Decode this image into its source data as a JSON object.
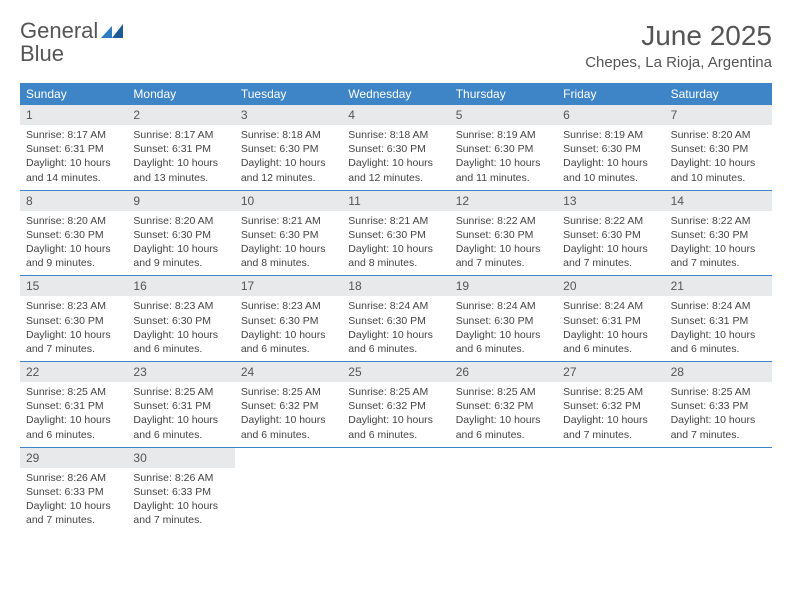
{
  "logo": {
    "text1": "General",
    "text2": "Blue"
  },
  "title": "June 2025",
  "subtitle": "Chepes, La Rioja, Argentina",
  "colors": {
    "header_bg": "#3d85c6",
    "header_text": "#ffffff",
    "daynum_bg": "#e8e9ea",
    "body_text": "#444444",
    "border": "#3d85c6",
    "logo_blue": "#2d7bc0"
  },
  "weekdays": [
    "Sunday",
    "Monday",
    "Tuesday",
    "Wednesday",
    "Thursday",
    "Friday",
    "Saturday"
  ],
  "days": [
    {
      "n": 1,
      "sr": "8:17 AM",
      "ss": "6:31 PM",
      "dl": "10 hours and 14 minutes."
    },
    {
      "n": 2,
      "sr": "8:17 AM",
      "ss": "6:31 PM",
      "dl": "10 hours and 13 minutes."
    },
    {
      "n": 3,
      "sr": "8:18 AM",
      "ss": "6:30 PM",
      "dl": "10 hours and 12 minutes."
    },
    {
      "n": 4,
      "sr": "8:18 AM",
      "ss": "6:30 PM",
      "dl": "10 hours and 12 minutes."
    },
    {
      "n": 5,
      "sr": "8:19 AM",
      "ss": "6:30 PM",
      "dl": "10 hours and 11 minutes."
    },
    {
      "n": 6,
      "sr": "8:19 AM",
      "ss": "6:30 PM",
      "dl": "10 hours and 10 minutes."
    },
    {
      "n": 7,
      "sr": "8:20 AM",
      "ss": "6:30 PM",
      "dl": "10 hours and 10 minutes."
    },
    {
      "n": 8,
      "sr": "8:20 AM",
      "ss": "6:30 PM",
      "dl": "10 hours and 9 minutes."
    },
    {
      "n": 9,
      "sr": "8:20 AM",
      "ss": "6:30 PM",
      "dl": "10 hours and 9 minutes."
    },
    {
      "n": 10,
      "sr": "8:21 AM",
      "ss": "6:30 PM",
      "dl": "10 hours and 8 minutes."
    },
    {
      "n": 11,
      "sr": "8:21 AM",
      "ss": "6:30 PM",
      "dl": "10 hours and 8 minutes."
    },
    {
      "n": 12,
      "sr": "8:22 AM",
      "ss": "6:30 PM",
      "dl": "10 hours and 7 minutes."
    },
    {
      "n": 13,
      "sr": "8:22 AM",
      "ss": "6:30 PM",
      "dl": "10 hours and 7 minutes."
    },
    {
      "n": 14,
      "sr": "8:22 AM",
      "ss": "6:30 PM",
      "dl": "10 hours and 7 minutes."
    },
    {
      "n": 15,
      "sr": "8:23 AM",
      "ss": "6:30 PM",
      "dl": "10 hours and 7 minutes."
    },
    {
      "n": 16,
      "sr": "8:23 AM",
      "ss": "6:30 PM",
      "dl": "10 hours and 6 minutes."
    },
    {
      "n": 17,
      "sr": "8:23 AM",
      "ss": "6:30 PM",
      "dl": "10 hours and 6 minutes."
    },
    {
      "n": 18,
      "sr": "8:24 AM",
      "ss": "6:30 PM",
      "dl": "10 hours and 6 minutes."
    },
    {
      "n": 19,
      "sr": "8:24 AM",
      "ss": "6:30 PM",
      "dl": "10 hours and 6 minutes."
    },
    {
      "n": 20,
      "sr": "8:24 AM",
      "ss": "6:31 PM",
      "dl": "10 hours and 6 minutes."
    },
    {
      "n": 21,
      "sr": "8:24 AM",
      "ss": "6:31 PM",
      "dl": "10 hours and 6 minutes."
    },
    {
      "n": 22,
      "sr": "8:25 AM",
      "ss": "6:31 PM",
      "dl": "10 hours and 6 minutes."
    },
    {
      "n": 23,
      "sr": "8:25 AM",
      "ss": "6:31 PM",
      "dl": "10 hours and 6 minutes."
    },
    {
      "n": 24,
      "sr": "8:25 AM",
      "ss": "6:32 PM",
      "dl": "10 hours and 6 minutes."
    },
    {
      "n": 25,
      "sr": "8:25 AM",
      "ss": "6:32 PM",
      "dl": "10 hours and 6 minutes."
    },
    {
      "n": 26,
      "sr": "8:25 AM",
      "ss": "6:32 PM",
      "dl": "10 hours and 6 minutes."
    },
    {
      "n": 27,
      "sr": "8:25 AM",
      "ss": "6:32 PM",
      "dl": "10 hours and 7 minutes."
    },
    {
      "n": 28,
      "sr": "8:25 AM",
      "ss": "6:33 PM",
      "dl": "10 hours and 7 minutes."
    },
    {
      "n": 29,
      "sr": "8:26 AM",
      "ss": "6:33 PM",
      "dl": "10 hours and 7 minutes."
    },
    {
      "n": 30,
      "sr": "8:26 AM",
      "ss": "6:33 PM",
      "dl": "10 hours and 7 minutes."
    }
  ],
  "labels": {
    "sunrise": "Sunrise:",
    "sunset": "Sunset:",
    "daylight": "Daylight:"
  },
  "month_start_weekday": 0,
  "month_total_days": 30
}
